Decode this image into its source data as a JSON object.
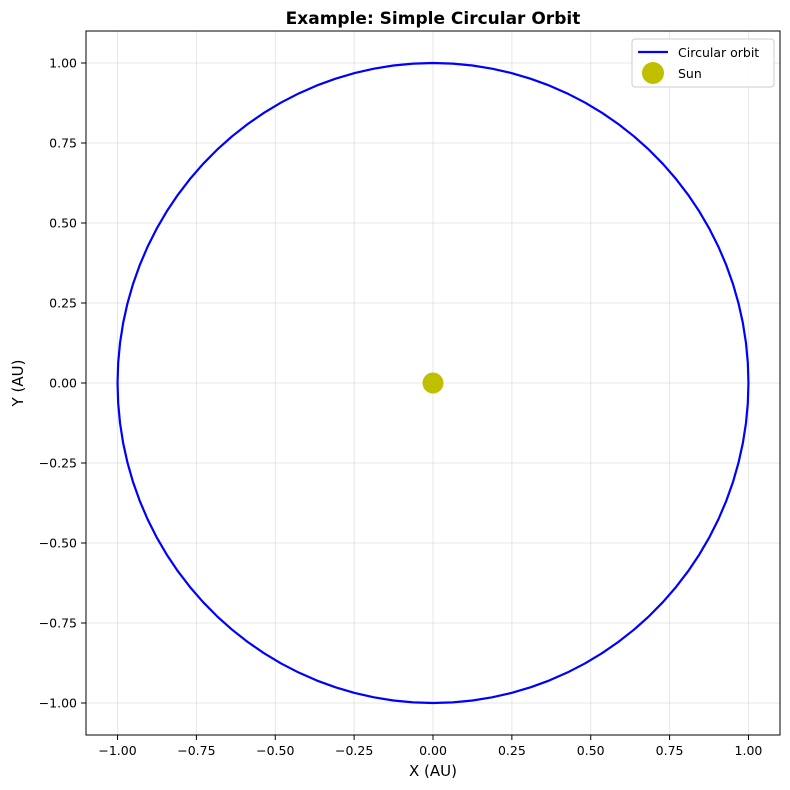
{
  "chart_data": {
    "type": "line",
    "title": "Example: Simple Circular Orbit",
    "xlabel": "X (AU)",
    "ylabel": "Y (AU)",
    "xlim": [
      -1.1,
      1.1
    ],
    "ylim": [
      -1.1,
      1.1
    ],
    "xticks": [
      -1.0,
      -0.75,
      -0.5,
      -0.25,
      0.0,
      0.25,
      0.5,
      0.75,
      1.0
    ],
    "yticks": [
      -1.0,
      -0.75,
      -0.5,
      -0.25,
      0.0,
      0.25,
      0.5,
      0.75,
      1.0
    ],
    "xtick_labels": [
      "−1.00",
      "−0.75",
      "−0.50",
      "−0.25",
      "0.00",
      "0.25",
      "0.50",
      "0.75",
      "1.00"
    ],
    "ytick_labels": [
      "−1.00",
      "−0.75",
      "−0.50",
      "−0.25",
      "0.00",
      "0.25",
      "0.50",
      "0.75",
      "1.00"
    ],
    "grid": true,
    "legend_position": "top-right",
    "series": [
      {
        "name": "Circular orbit",
        "kind": "line",
        "color": "#0000ff",
        "shape": "circle",
        "center": [
          0.0,
          0.0
        ],
        "radius": 1.0
      },
      {
        "name": "Sun",
        "kind": "marker",
        "color": "#bfbf00",
        "x": [
          0.0
        ],
        "y": [
          0.0
        ]
      }
    ]
  }
}
